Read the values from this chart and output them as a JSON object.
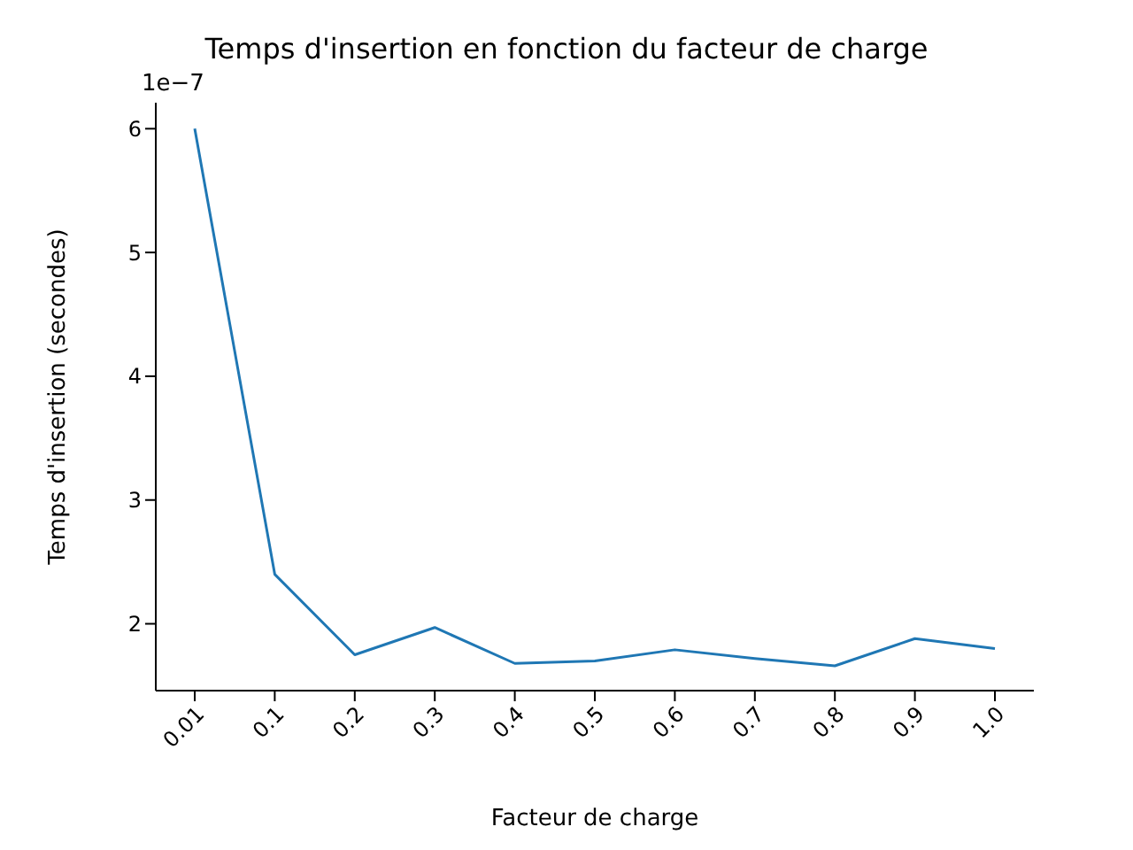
{
  "chart_data": {
    "type": "line",
    "title": "Temps d'insertion en fonction du facteur de charge",
    "xlabel": "Facteur de charge",
    "ylabel": "Temps d'insertion (secondes)",
    "annotations": [
      "1e−7"
    ],
    "categories": [
      "0.01",
      "0.1",
      "0.2",
      "0.3",
      "0.4",
      "0.5",
      "0.6",
      "0.7",
      "0.8",
      "0.9",
      "1.0"
    ],
    "series": [
      {
        "color": "#1f77b4",
        "values": [
          6.0,
          2.4,
          1.75,
          1.97,
          1.68,
          1.7,
          1.79,
          1.72,
          1.66,
          1.88,
          1.8
        ]
      }
    ],
    "ylim": [
      1.46,
      6.21
    ],
    "yticks": [
      2,
      3,
      4,
      5,
      6
    ]
  }
}
